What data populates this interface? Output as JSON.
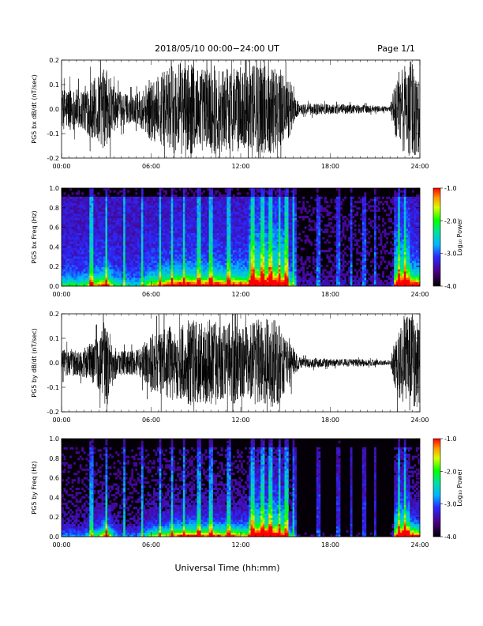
{
  "header": {
    "title": "2018/05/10  00:00−24:00 UT",
    "page": "Page 1/1"
  },
  "xaxis": {
    "label": "Universal Time (hh:mm)",
    "ticks": [
      "00:00",
      "06:00",
      "12:00",
      "18:00",
      "24:00"
    ],
    "range_hours": [
      0,
      24
    ]
  },
  "colors": {
    "trace": "#000000",
    "spec_bg": "#050008"
  },
  "chart_data": [
    {
      "type": "line",
      "ylabel": "PG5 bx dB/dt (nT/sec)",
      "ylim": [
        -0.2,
        0.2
      ],
      "yticks": [
        "-0.2",
        "-0.1",
        "0.0",
        "0.1",
        "0.2"
      ],
      "envelope": {
        "x": [
          0,
          0.5,
          1,
          1.5,
          2,
          2.5,
          3,
          3.5,
          4,
          4.5,
          5,
          5.5,
          6,
          6.5,
          7,
          7.5,
          8,
          8.5,
          9,
          9.5,
          10,
          10.5,
          11,
          11.5,
          12,
          12.5,
          13,
          13.5,
          14,
          14.5,
          15,
          15.3,
          15.6,
          16,
          17,
          18,
          19,
          20,
          21,
          21.5,
          22,
          22.5,
          23,
          23.5,
          24
        ],
        "y": [
          0.08,
          0.09,
          0.08,
          0.09,
          0.12,
          0.14,
          0.18,
          0.09,
          0.07,
          0.06,
          0.06,
          0.09,
          0.13,
          0.14,
          0.16,
          0.18,
          0.19,
          0.19,
          0.18,
          0.17,
          0.19,
          0.18,
          0.17,
          0.18,
          0.17,
          0.16,
          0.19,
          0.18,
          0.19,
          0.18,
          0.13,
          0.12,
          0.05,
          0.02,
          0.025,
          0.02,
          0.02,
          0.018,
          0.014,
          0.012,
          0.01,
          0.15,
          0.2,
          0.2,
          0.18
        ]
      }
    },
    {
      "type": "heatmap",
      "ylabel": "PG5 bx Freq (Hz)",
      "ylim": [
        0,
        1
      ],
      "yticks": [
        "0.0",
        "0.2",
        "0.4",
        "0.6",
        "0.8",
        "1.0"
      ],
      "colorbar": {
        "label": "Log₁₀ Power",
        "range": [
          -4,
          -1
        ],
        "ticks": [
          "-1.0",
          "-2.0",
          "-3.0",
          "-4.0"
        ]
      }
    },
    {
      "type": "line",
      "ylabel": "PG5 by dB/dt (nT/sec)",
      "ylim": [
        -0.2,
        0.2
      ],
      "yticks": [
        "-0.2",
        "-0.1",
        "0.0",
        "0.1",
        "0.2"
      ],
      "envelope": {
        "x": [
          0,
          0.5,
          1,
          1.5,
          2,
          2.5,
          3,
          3.5,
          4,
          4.5,
          5,
          5.5,
          6,
          6.5,
          7,
          7.5,
          8,
          8.5,
          9,
          9.5,
          10,
          10.5,
          11,
          11.5,
          12,
          12.5,
          13,
          13.5,
          14,
          14.5,
          15,
          15.3,
          15.6,
          16,
          17,
          18,
          19,
          20,
          21,
          21.5,
          22,
          22.5,
          23,
          23.5,
          24
        ],
        "y": [
          0.05,
          0.06,
          0.05,
          0.06,
          0.09,
          0.11,
          0.19,
          0.07,
          0.05,
          0.05,
          0.05,
          0.08,
          0.12,
          0.13,
          0.14,
          0.16,
          0.17,
          0.18,
          0.17,
          0.16,
          0.18,
          0.17,
          0.16,
          0.17,
          0.15,
          0.15,
          0.18,
          0.17,
          0.19,
          0.17,
          0.12,
          0.1,
          0.05,
          0.02,
          0.02,
          0.016,
          0.015,
          0.015,
          0.012,
          0.01,
          0.01,
          0.14,
          0.2,
          0.2,
          0.17
        ]
      }
    },
    {
      "type": "heatmap",
      "ylabel": "PG5 by Freq (Hz)",
      "ylim": [
        0,
        1
      ],
      "yticks": [
        "0.0",
        "0.2",
        "0.4",
        "0.6",
        "0.8",
        "1.0"
      ],
      "colorbar": {
        "label": "Log₁₀ Power",
        "range": [
          -4,
          -1
        ],
        "ticks": [
          "-1.0",
          "-2.0",
          "-3.0",
          "-4.0"
        ]
      }
    }
  ]
}
